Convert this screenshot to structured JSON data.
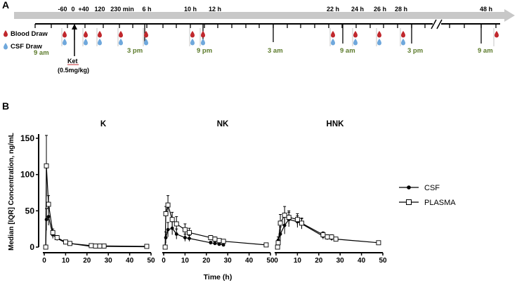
{
  "panel_a": {
    "label": "A",
    "time_labels": [
      "-60",
      "0",
      "+40",
      "120",
      "230 min",
      "6 h",
      "10 h",
      "12 h",
      "22 h",
      "24 h",
      "26 h",
      "28 h",
      "48 h"
    ],
    "legend": {
      "blood": "Blood Draw",
      "csf": "CSF Draw"
    },
    "clock_labels": [
      "9 am",
      "3 pm",
      "9 pm",
      "3 am",
      "9 am",
      "3 pm",
      "9 am"
    ],
    "dose_drug": "Ket",
    "dose_amount": "(0.5mg/kg)",
    "colors": {
      "blood": "#c0282d",
      "csf": "#6fa8dc",
      "clock": "#5b7a2a",
      "arrow": "#c8c8c8"
    }
  },
  "panel_b": {
    "label": "B",
    "ylabel": "Median [IQR] Concentration, ng/mL",
    "xlabel": "Time (h)",
    "legend": {
      "csf": "CSF",
      "plasma": "PLASMA"
    }
  },
  "chart_data": [
    {
      "type": "line",
      "title": "K",
      "ylim": [
        0,
        150
      ],
      "xlim": [
        0,
        50
      ],
      "yticks": [
        0,
        50,
        100,
        150
      ],
      "xticks": [
        0,
        10,
        20,
        30,
        40,
        50
      ],
      "series": [
        {
          "name": "CSF",
          "marker": "filled-circle",
          "points": [
            [
              0.7,
              0
            ],
            [
              1,
              38
            ],
            [
              2,
              42
            ],
            [
              4,
              17
            ],
            [
              6,
              12
            ],
            [
              10,
              6
            ],
            [
              12,
              5
            ],
            [
              22,
              1
            ],
            [
              24,
              1
            ],
            [
              26,
              1
            ],
            [
              28,
              1
            ],
            [
              48,
              0.5
            ]
          ],
          "errors": [
            [
              0,
              0
            ],
            [
              15,
              15
            ],
            [
              12,
              12
            ],
            [
              5,
              5
            ],
            [
              3,
              3
            ],
            [
              2,
              2
            ],
            [
              1,
              1
            ],
            [
              0.5,
              0.5
            ],
            [
              0.5,
              0.5
            ],
            [
              0.5,
              0.5
            ],
            [
              0.5,
              0.5
            ],
            [
              0.3,
              0.3
            ]
          ]
        },
        {
          "name": "PLASMA",
          "marker": "open-square",
          "points": [
            [
              0.7,
              0
            ],
            [
              1,
              112
            ],
            [
              2,
              59
            ],
            [
              4,
              20
            ],
            [
              6,
              13
            ],
            [
              10,
              7
            ],
            [
              12,
              5
            ],
            [
              22,
              2
            ],
            [
              24,
              1.5
            ],
            [
              26,
              1.5
            ],
            [
              28,
              1.5
            ],
            [
              48,
              1
            ]
          ],
          "errors": [
            [
              0,
              0
            ],
            [
              42,
              42
            ],
            [
              12,
              12
            ],
            [
              5,
              5
            ],
            [
              3,
              3
            ],
            [
              2,
              2
            ],
            [
              1,
              1
            ],
            [
              0.5,
              0.5
            ],
            [
              0.5,
              0.5
            ],
            [
              0.5,
              0.5
            ],
            [
              0.5,
              0.5
            ],
            [
              0.3,
              0.3
            ]
          ]
        }
      ]
    },
    {
      "type": "line",
      "title": "NK",
      "ylim": [
        0,
        150
      ],
      "xlim": [
        0,
        50
      ],
      "xticks": [
        0,
        10,
        20,
        30,
        40,
        50
      ],
      "series": [
        {
          "name": "CSF",
          "marker": "filled-circle",
          "points": [
            [
              0.7,
              0
            ],
            [
              1,
              13
            ],
            [
              2,
              24
            ],
            [
              4,
              26
            ],
            [
              6,
              18
            ],
            [
              10,
              13
            ],
            [
              12,
              12
            ],
            [
              22,
              6
            ],
            [
              24,
              5
            ],
            [
              26,
              4
            ],
            [
              28,
              3
            ]
          ],
          "errors": [
            [
              0,
              0
            ],
            [
              8,
              8
            ],
            [
              10,
              10
            ],
            [
              9,
              9
            ],
            [
              7,
              7
            ],
            [
              5,
              5
            ],
            [
              4,
              4
            ],
            [
              2,
              2
            ],
            [
              2,
              2
            ],
            [
              1.5,
              1.5
            ],
            [
              1,
              1
            ]
          ]
        },
        {
          "name": "PLASMA",
          "marker": "open-square",
          "points": [
            [
              0.7,
              0
            ],
            [
              1,
              46
            ],
            [
              2,
              58
            ],
            [
              4,
              38
            ],
            [
              6,
              32
            ],
            [
              10,
              24
            ],
            [
              12,
              20
            ],
            [
              22,
              13
            ],
            [
              24,
              11
            ],
            [
              26,
              9
            ],
            [
              28,
              8
            ],
            [
              48,
              3
            ]
          ],
          "errors": [
            [
              0,
              0
            ],
            [
              10,
              10
            ],
            [
              13,
              13
            ],
            [
              10,
              10
            ],
            [
              10,
              10
            ],
            [
              8,
              8
            ],
            [
              6,
              6
            ],
            [
              3,
              3
            ],
            [
              3,
              3
            ],
            [
              2,
              2
            ],
            [
              2,
              2
            ],
            [
              1,
              1
            ]
          ]
        }
      ]
    },
    {
      "type": "line",
      "title": "HNK",
      "ylim": [
        0,
        150
      ],
      "xlim": [
        0,
        50
      ],
      "xticks": [
        0,
        10,
        20,
        30,
        40,
        50
      ],
      "series": [
        {
          "name": "CSF",
          "marker": "filled-circle",
          "points": [
            [
              0.7,
              0
            ],
            [
              1,
              9
            ],
            [
              2,
              18
            ],
            [
              4,
              30
            ],
            [
              6,
              38
            ],
            [
              10,
              35
            ],
            [
              12,
              32
            ],
            [
              22,
              15
            ],
            [
              24,
              13
            ],
            [
              26,
              12
            ],
            [
              28,
              10
            ]
          ],
          "errors": [
            [
              0,
              0
            ],
            [
              5,
              5
            ],
            [
              10,
              10
            ],
            [
              12,
              12
            ],
            [
              10,
              10
            ],
            [
              8,
              8
            ],
            [
              7,
              7
            ],
            [
              4,
              4
            ],
            [
              3,
              3
            ],
            [
              3,
              3
            ],
            [
              2,
              2
            ]
          ]
        },
        {
          "name": "PLASMA",
          "marker": "open-square",
          "points": [
            [
              0.7,
              0
            ],
            [
              1,
              6
            ],
            [
              2,
              33
            ],
            [
              4,
              44
            ],
            [
              6,
              41
            ],
            [
              10,
              38
            ],
            [
              12,
              33
            ],
            [
              22,
              17
            ],
            [
              24,
              14
            ],
            [
              26,
              14
            ],
            [
              28,
              11
            ],
            [
              48,
              6
            ]
          ],
          "errors": [
            [
              0,
              0
            ],
            [
              5,
              5
            ],
            [
              12,
              12
            ],
            [
              12,
              12
            ],
            [
              9,
              9
            ],
            [
              8,
              8
            ],
            [
              7,
              7
            ],
            [
              4,
              4
            ],
            [
              3,
              3
            ],
            [
              3,
              3
            ],
            [
              2,
              2
            ],
            [
              1,
              1
            ]
          ]
        }
      ]
    }
  ]
}
